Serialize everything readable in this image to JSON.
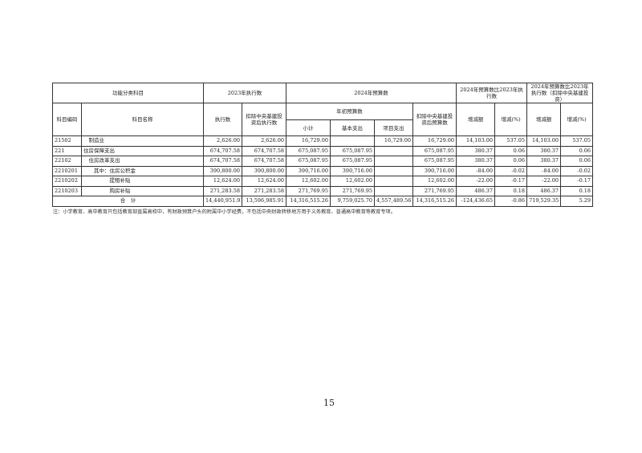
{
  "table": {
    "header": {
      "func_category": "功能分类科目",
      "exec_2023": "2023年执行数",
      "budget_2024": "2024年预算数",
      "compare": "2024年预算数比2023年执行数",
      "compare_excl": "2024年预算数比2023年执行数（扣除中央基建投资）",
      "code": "科目编码",
      "name": "科目名称",
      "exec": "执行数",
      "exec_excl": "扣除中央基建投资后执行数",
      "initial_budget": "年初预算数",
      "budget_excl": "扣除中央基建投资后预算数",
      "subtotal": "小计",
      "basic": "基本支出",
      "project": "项目支出",
      "change": "增减额",
      "change_pct": "增减(%)",
      "change2": "增减额",
      "change_pct2": "增减(%)"
    },
    "rows": [
      {
        "code": "21502",
        "name": "　制造业",
        "exec": "2,626.00",
        "exec_excl": "2,626.00",
        "subtotal": "16,729.00",
        "basic": "",
        "project": "16,729.00",
        "budget_excl": "16,729.00",
        "change": "14,103.00",
        "pct": "537.05",
        "change2": "14,103.00",
        "pct2": "537.05"
      },
      {
        "code": "221",
        "name": "住房保障支出",
        "exec": "674,707.58",
        "exec_excl": "674,707.58",
        "subtotal": "675,087.95",
        "basic": "675,087.95",
        "project": "",
        "budget_excl": "675,087.95",
        "change": "380.37",
        "pct": "0.06",
        "change2": "380.37",
        "pct2": "0.06"
      },
      {
        "code": "22102",
        "name": "　住房改革支出",
        "exec": "674,707.58",
        "exec_excl": "674,707.58",
        "subtotal": "675,087.95",
        "basic": "675,087.95",
        "project": "",
        "budget_excl": "675,087.95",
        "change": "380.37",
        "pct": "0.06",
        "change2": "380.37",
        "pct2": "0.06"
      },
      {
        "code": "2210201",
        "name": "　　其中：住房公积金",
        "exec": "390,800.00",
        "exec_excl": "390,800.00",
        "subtotal": "390,716.00",
        "basic": "390,716.00",
        "project": "",
        "budget_excl": "390,716.00",
        "change": "-84.00",
        "pct": "-0.02",
        "change2": "-84.00",
        "pct2": "-0.02"
      },
      {
        "code": "2210202",
        "name": "　　　　　提租补贴",
        "exec": "12,624.00",
        "exec_excl": "12,624.00",
        "subtotal": "12,602.00",
        "basic": "12,602.00",
        "project": "",
        "budget_excl": "12,602.00",
        "change": "-22.00",
        "pct": "-0.17",
        "change2": "-22.00",
        "pct2": "-0.17"
      },
      {
        "code": "2210203",
        "name": "　　　　　购房补贴",
        "exec": "271,283.58",
        "exec_excl": "271,283.58",
        "subtotal": "271,769.95",
        "basic": "271,769.95",
        "project": "",
        "budget_excl": "271,769.95",
        "change": "486.37",
        "pct": "0.18",
        "change2": "486.37",
        "pct2": "0.18"
      }
    ],
    "total": {
      "label": "合　计",
      "exec": "14,440,951.91",
      "exec_excl": "13,596,985.91",
      "subtotal": "14,316,515.26",
      "basic": "9,759,025.70",
      "project": "4,557,489.56",
      "budget_excl": "14,316,515.26",
      "change": "-124,436.65",
      "pct": "-0.86",
      "change2": "719,529.35",
      "pct2": "5.29"
    }
  },
  "note": "注：小学教育、高中教育只包括教育部直属高校中，有财政预算户头的附属中小学经费，不包括中央财政转移地方用于义务教育、普通高中教育等教育专项。",
  "page_number": "15"
}
